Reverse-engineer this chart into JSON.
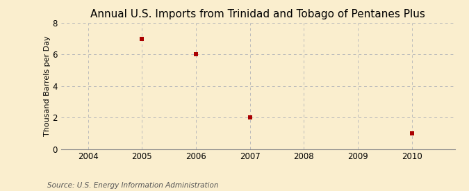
{
  "title": "Annual U.S. Imports from Trinidad and Tobago of Pentanes Plus",
  "ylabel": "Thousand Barrels per Day",
  "source": "Source: U.S. Energy Information Administration",
  "x_data": [
    2005,
    2006,
    2007,
    2010
  ],
  "y_data": [
    7,
    6,
    2,
    1
  ],
  "xlim": [
    2003.5,
    2010.8
  ],
  "ylim": [
    0,
    8
  ],
  "yticks": [
    0,
    2,
    4,
    6,
    8
  ],
  "xticks": [
    2004,
    2005,
    2006,
    2007,
    2008,
    2009,
    2010
  ],
  "marker_color": "#aa0000",
  "marker": "s",
  "marker_size": 4,
  "bg_color": "#faeece",
  "grid_color": "#bbbbbb",
  "title_fontsize": 11,
  "label_fontsize": 8,
  "tick_fontsize": 8.5,
  "source_fontsize": 7.5
}
